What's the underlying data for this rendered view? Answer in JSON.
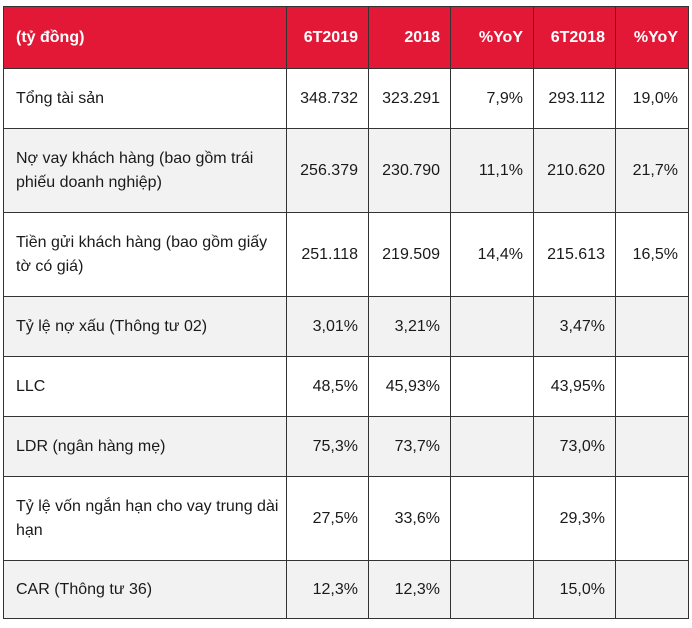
{
  "table": {
    "headers": [
      "(tỷ đồng)",
      "6T2019",
      "2018",
      "%YoY",
      "6T2018",
      "%YoY"
    ],
    "rows": [
      [
        "Tổng tài sản",
        "348.732",
        "323.291",
        "7,9%",
        "293.112",
        "19,0%"
      ],
      [
        "Nợ vay khách hàng (bao gồm trái phiếu doanh nghiệp)",
        "256.379",
        "230.790",
        "11,1%",
        "210.620",
        "21,7%"
      ],
      [
        "Tiền gửi khách hàng (bao gồm giấy tờ có giá)",
        "251.118",
        "219.509",
        "14,4%",
        "215.613",
        "16,5%"
      ],
      [
        "Tỷ lệ nợ xấu (Thông tư 02)",
        "3,01%",
        "3,21%",
        "",
        "3,47%",
        ""
      ],
      [
        "LLC",
        "48,5%",
        "45,93%",
        "",
        "43,95%",
        ""
      ],
      [
        "LDR (ngân hàng mẹ)",
        "75,3%",
        "73,7%",
        "",
        "73,0%",
        ""
      ],
      [
        "Tỷ lệ vốn ngắn hạn cho vay trung dài hạn",
        "27,5%",
        "33,6%",
        "",
        "29,3%",
        ""
      ],
      [
        "CAR (Thông tư 36)",
        "12,3%",
        "12,3%",
        "",
        "15,0%",
        ""
      ]
    ]
  },
  "colors": {
    "header_bg": "#e31837",
    "header_text": "#ffffff",
    "row_alt_bg": "#f2f2f2"
  }
}
